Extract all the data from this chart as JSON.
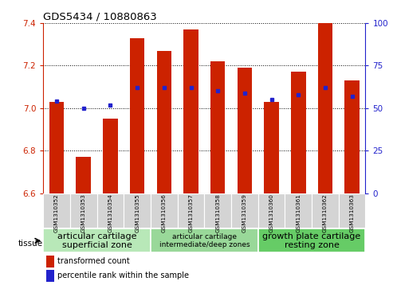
{
  "title": "GDS5434 / 10880863",
  "samples": [
    "GSM1310352",
    "GSM1310353",
    "GSM1310354",
    "GSM1310355",
    "GSM1310356",
    "GSM1310357",
    "GSM1310358",
    "GSM1310359",
    "GSM1310360",
    "GSM1310361",
    "GSM1310362",
    "GSM1310363"
  ],
  "red_values": [
    7.03,
    6.77,
    6.95,
    7.33,
    7.27,
    7.37,
    7.22,
    7.19,
    7.03,
    7.17,
    7.4,
    7.13
  ],
  "blue_percentiles": [
    54,
    50,
    52,
    62,
    62,
    62,
    60,
    59,
    55,
    58,
    62,
    57
  ],
  "ylim_left": [
    6.6,
    7.4
  ],
  "ylim_right": [
    0,
    100
  ],
  "yticks_left": [
    6.6,
    6.8,
    7.0,
    7.2,
    7.4
  ],
  "yticks_right": [
    0,
    25,
    50,
    75,
    100
  ],
  "bar_color": "#cc2200",
  "dot_color": "#2222cc",
  "bg_color": "#ffffff",
  "tissue_groups": [
    {
      "label": "articular cartilage\nsuperficial zone",
      "start": 0,
      "end": 3,
      "color": "#b8e8b8",
      "fontsize": 8
    },
    {
      "label": "articular cartilage\nintermediate/deep zones",
      "start": 4,
      "end": 7,
      "color": "#99d899",
      "fontsize": 6.5
    },
    {
      "label": "growth plate cartilage\nresting zone",
      "start": 8,
      "end": 11,
      "color": "#66cc66",
      "fontsize": 8
    }
  ],
  "legend_red": "transformed count",
  "legend_blue": "percentile rank within the sample",
  "tissue_label": "tissue",
  "base_value": 6.6,
  "bar_width": 0.55
}
